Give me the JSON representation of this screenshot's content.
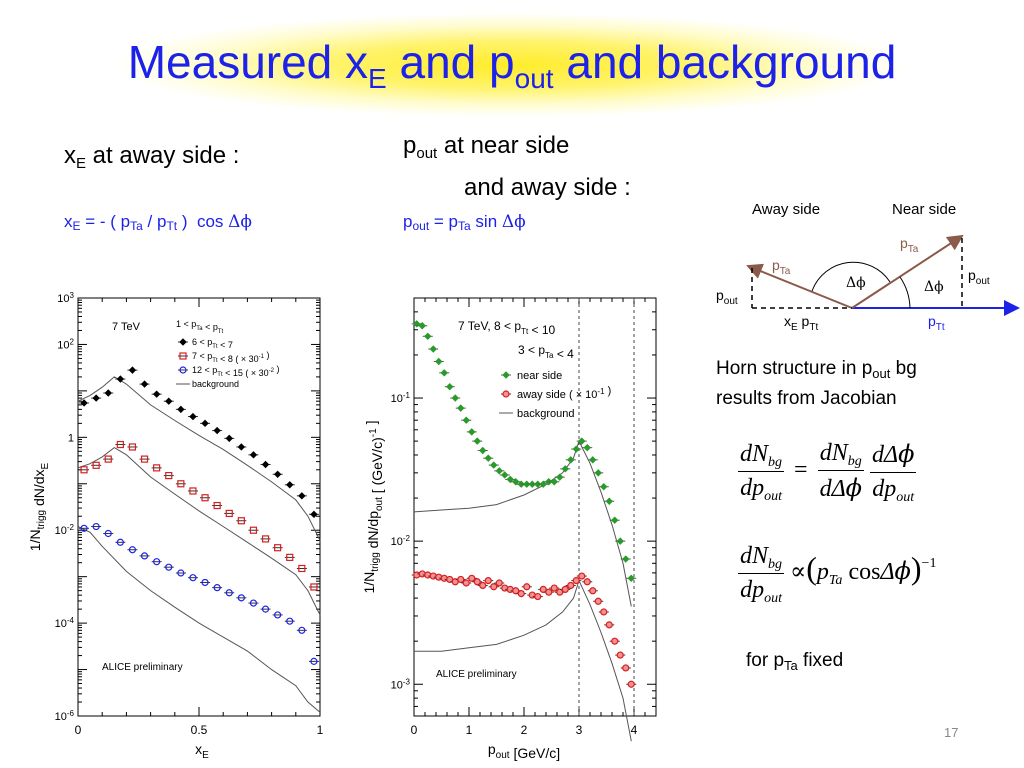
{
  "slide": {
    "title_main1": "Measured x",
    "title_sub1": "E",
    "title_main2": " and p",
    "title_sub2": "out",
    "title_main3": " and background",
    "page_number": "17"
  },
  "left_text": {
    "heading_var": "x",
    "heading_sub": "E",
    "heading_rest": " at away side :",
    "formula": "x_E = - ( p_Ta / p_Tt )  cos Δϕ"
  },
  "middle_text": {
    "heading_var": "p",
    "heading_sub": "out",
    "heading_rest": " at near side",
    "heading_line2": "and away side :",
    "formula": "p_out = p_Ta sin Δϕ"
  },
  "right_text": {
    "horn_line1_pre": "Horn structure in p",
    "horn_line1_sub": "out",
    "horn_line1_post": " bg",
    "horn_line2": "results from Jacobian",
    "fixed_pre": "for p",
    "fixed_sub": "Ta",
    "fixed_post": " fixed"
  },
  "diagram": {
    "away_label": "Away side",
    "near_label": "Near side",
    "pta_left": "p_Ta",
    "pta_right": "p_Ta",
    "dphi": "Δϕ",
    "pout_left": "p_out",
    "pout_right": "p_out",
    "xe_pt": "x_E p_Tt",
    "ptt": "p_Tt"
  },
  "equations": {
    "eq1": "dN_bg/dp_out = dN_bg/dΔϕ · dΔϕ/dp_out",
    "eq2": "dN_bg/dp_out ∝ (p_Ta cosΔϕ)^-1"
  },
  "chart_data": [
    {
      "type": "scatter",
      "annotation": "7 TeV",
      "xlabel": "x_E",
      "ylabel": "1/N_trigg dN/dx_E",
      "xlim": [
        0,
        1
      ],
      "ylim": [
        1e-06,
        1000.0
      ],
      "log_y": true,
      "x_ticks": [
        "0",
        "0.5",
        "1"
      ],
      "y_ticks": [
        "10^-6",
        "10^-4",
        "10^-2",
        "1",
        "10^2",
        "10^3"
      ],
      "legend_title": "1 < p_Ta < p_Tt",
      "watermark": "ALICE preliminary",
      "series": [
        {
          "name": "6 < p_Tt < 7",
          "color": "#000000",
          "marker": "diamond",
          "x": [
            0.025,
            0.075,
            0.125,
            0.175,
            0.225,
            0.275,
            0.325,
            0.375,
            0.425,
            0.475,
            0.525,
            0.575,
            0.625,
            0.675,
            0.725,
            0.775,
            0.825,
            0.875,
            0.925,
            0.975
          ],
          "y": [
            5.5,
            7,
            9,
            18,
            28,
            14,
            8.5,
            6,
            4,
            2.8,
            2,
            1.4,
            0.95,
            0.62,
            0.42,
            0.26,
            0.16,
            0.095,
            0.055,
            0.022
          ]
        },
        {
          "name": "7 < p_Tt < 8 ( × 30^-1 )",
          "color": "#d42020",
          "marker": "square",
          "x": [
            0.025,
            0.075,
            0.125,
            0.175,
            0.225,
            0.275,
            0.325,
            0.375,
            0.425,
            0.475,
            0.525,
            0.575,
            0.625,
            0.675,
            0.725,
            0.775,
            0.825,
            0.875,
            0.925,
            0.975
          ],
          "y": [
            0.2,
            0.25,
            0.34,
            0.7,
            0.62,
            0.34,
            0.22,
            0.15,
            0.1,
            0.07,
            0.05,
            0.034,
            0.023,
            0.016,
            0.01,
            0.0065,
            0.0042,
            0.0026,
            0.0015,
            0.0006
          ]
        },
        {
          "name": "12 < p_Tt < 15 ( × 30^-2 )",
          "color": "#1c22e8",
          "marker": "circle",
          "x": [
            0.025,
            0.075,
            0.125,
            0.175,
            0.225,
            0.275,
            0.325,
            0.375,
            0.425,
            0.475,
            0.525,
            0.575,
            0.625,
            0.675,
            0.725,
            0.775,
            0.825,
            0.875,
            0.925,
            0.975
          ],
          "y": [
            0.011,
            0.012,
            0.0085,
            0.0055,
            0.0038,
            0.0028,
            0.0021,
            0.0016,
            0.0012,
            0.00095,
            0.00075,
            0.00058,
            0.00045,
            0.00035,
            0.00027,
            0.0002,
            0.00015,
            0.00011,
            7e-05,
            1.5e-05
          ]
        }
      ],
      "background_curves": [
        {
          "x": [
            0,
            0.05,
            0.1,
            0.15,
            0.2,
            0.3,
            0.4,
            0.5,
            0.6,
            0.7,
            0.8,
            0.9,
            0.95,
            1.0
          ],
          "y": [
            6,
            8,
            12,
            20,
            14,
            5,
            2.3,
            1.1,
            0.55,
            0.25,
            0.11,
            0.045,
            0.02,
            0.006
          ]
        },
        {
          "x": [
            0,
            0.05,
            0.1,
            0.15,
            0.2,
            0.3,
            0.4,
            0.5,
            0.6,
            0.7,
            0.8,
            0.9,
            0.95,
            1.0
          ],
          "y": [
            0.22,
            0.27,
            0.38,
            0.6,
            0.42,
            0.14,
            0.06,
            0.026,
            0.012,
            0.0055,
            0.0025,
            0.0011,
            0.0005,
            0.00015
          ]
        },
        {
          "x": [
            0,
            0.05,
            0.1,
            0.2,
            0.3,
            0.4,
            0.5,
            0.6,
            0.7,
            0.8,
            0.9,
            0.95,
            1.0
          ],
          "y": [
            0.012,
            0.009,
            0.0045,
            0.0013,
            0.0005,
            0.00022,
            0.0001,
            5e-05,
            2.5e-05,
            1e-05,
            4.5e-06,
            2e-06,
            1.2e-06
          ]
        }
      ],
      "background_label": "background"
    },
    {
      "type": "scatter",
      "annotation_line1": "7 TeV,   8 < p_Tt < 10",
      "annotation_line2": "3 < p_Ta < 4",
      "xlabel": "p_out [GeV/c]",
      "ylabel": "1/N_trigg dN/dp_out [ (GeV/c)^-1 ]",
      "xlim": [
        0,
        4.4
      ],
      "ylim": [
        0.0006,
        0.5
      ],
      "log_y": true,
      "x_ticks": [
        "0",
        "1",
        "2",
        "3",
        "4"
      ],
      "y_ticks": [
        "10^-3",
        "10^-2",
        "10^-1"
      ],
      "vlines": [
        3,
        4
      ],
      "watermark": "ALICE preliminary",
      "series": [
        {
          "name": "near side",
          "color": "#2a9a2a",
          "marker": "diamond",
          "x": [
            0.05,
            0.15,
            0.25,
            0.35,
            0.45,
            0.55,
            0.65,
            0.75,
            0.85,
            0.95,
            1.05,
            1.15,
            1.25,
            1.35,
            1.45,
            1.55,
            1.65,
            1.75,
            1.85,
            1.95,
            2.05,
            2.15,
            2.25,
            2.35,
            2.45,
            2.55,
            2.65,
            2.75,
            2.85,
            2.95,
            3.05,
            3.15,
            3.25,
            3.35,
            3.45,
            3.55,
            3.65,
            3.75,
            3.85,
            3.95
          ],
          "y": [
            0.33,
            0.32,
            0.27,
            0.22,
            0.18,
            0.15,
            0.12,
            0.1,
            0.085,
            0.07,
            0.058,
            0.05,
            0.043,
            0.038,
            0.034,
            0.031,
            0.029,
            0.027,
            0.026,
            0.025,
            0.025,
            0.025,
            0.025,
            0.025,
            0.026,
            0.026,
            0.028,
            0.032,
            0.037,
            0.044,
            0.05,
            0.045,
            0.037,
            0.03,
            0.024,
            0.019,
            0.014,
            0.01,
            0.0075,
            0.0055
          ]
        },
        {
          "name": "away side ( × 10^-1 )",
          "color": "#d42020",
          "marker": "circle",
          "x": [
            0.05,
            0.15,
            0.25,
            0.35,
            0.45,
            0.55,
            0.65,
            0.75,
            0.85,
            0.95,
            1.05,
            1.15,
            1.25,
            1.35,
            1.45,
            1.55,
            1.65,
            1.75,
            1.85,
            1.95,
            2.05,
            2.15,
            2.25,
            2.35,
            2.45,
            2.55,
            2.65,
            2.75,
            2.85,
            2.95,
            3.05,
            3.15,
            3.25,
            3.35,
            3.45,
            3.55,
            3.65,
            3.75,
            3.85,
            3.95
          ],
          "y": [
            0.0058,
            0.0059,
            0.0058,
            0.0057,
            0.0056,
            0.0055,
            0.0054,
            0.0052,
            0.0054,
            0.0051,
            0.0055,
            0.0052,
            0.0049,
            0.0053,
            0.0048,
            0.0051,
            0.0047,
            0.0046,
            0.0045,
            0.0043,
            0.0048,
            0.0042,
            0.0041,
            0.0046,
            0.0044,
            0.0047,
            0.0044,
            0.0046,
            0.0049,
            0.0053,
            0.0057,
            0.0052,
            0.0045,
            0.0038,
            0.0032,
            0.0026,
            0.002,
            0.0016,
            0.0013,
            0.001
          ]
        }
      ],
      "background_curves": [
        {
          "x": [
            0,
            0.5,
            1.0,
            1.5,
            2.0,
            2.4,
            2.7,
            2.9,
            3.0,
            3.2,
            3.4,
            3.6,
            3.8,
            3.95
          ],
          "y": [
            0.016,
            0.0165,
            0.017,
            0.018,
            0.021,
            0.025,
            0.03,
            0.038,
            0.05,
            0.035,
            0.022,
            0.013,
            0.007,
            0.0035
          ]
        },
        {
          "x": [
            0,
            0.5,
            1.0,
            1.5,
            2.0,
            2.4,
            2.7,
            2.9,
            3.0,
            3.2,
            3.4,
            3.6,
            3.8,
            3.95
          ],
          "y": [
            0.0017,
            0.0017,
            0.0018,
            0.0019,
            0.0022,
            0.0026,
            0.0032,
            0.004,
            0.0053,
            0.0036,
            0.0023,
            0.0014,
            0.0008,
            0.0004
          ]
        }
      ],
      "background_label": "background"
    }
  ]
}
